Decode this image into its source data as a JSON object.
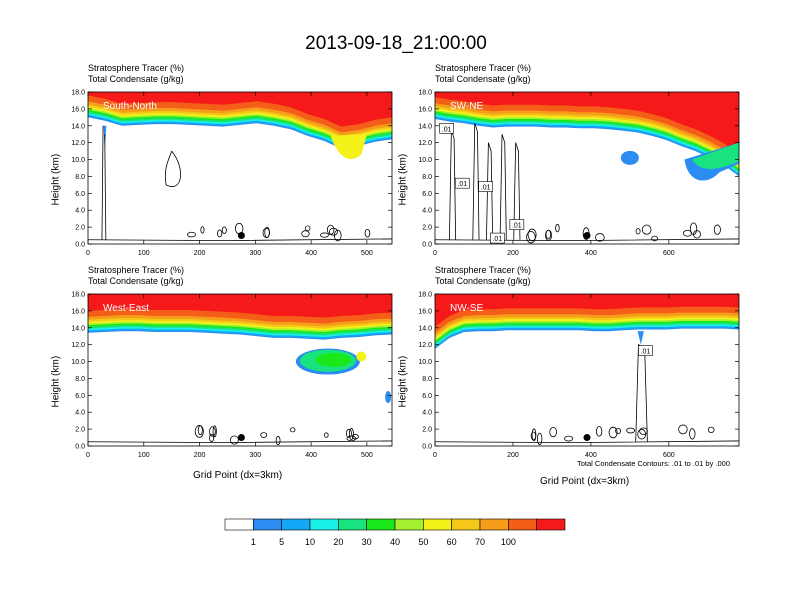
{
  "title": "2013-09-18_21:00:00",
  "colors": {
    "levels": [
      "#ffffff",
      "#2b8cf2",
      "#13a8f5",
      "#19f0e6",
      "#19e37f",
      "#19e81a",
      "#a6f032",
      "#f5f219",
      "#f5c719",
      "#f59e19",
      "#f55e19",
      "#f51919"
    ],
    "contour": "#000000"
  },
  "chart_data": [
    {
      "type": "contour",
      "panel_label": "South-North",
      "title_line1": "Stratosphere Tracer   (%)",
      "title_line2": "Total Condensate   (g/kg)",
      "xlabel": "",
      "ylabel": "Height (km)",
      "xlim": [
        0,
        545
      ],
      "ylim": [
        0,
        18
      ],
      "xticks": [
        "0",
        "100",
        "200",
        "300",
        "400",
        "500"
      ],
      "yticks": [
        "0.0",
        "2.0",
        "4.0",
        "6.0",
        "8.0",
        "10.0",
        "12.0",
        "14.0",
        "16.0",
        "18.0"
      ],
      "tracer_base_km": [
        15.0,
        14.6,
        14.0,
        14.1,
        14.2,
        14.2,
        14.1,
        14.0,
        13.9,
        14.1,
        14.3,
        14.0,
        13.6,
        12.8,
        12.2,
        11.3,
        11.6,
        12.1,
        12.4
      ],
      "marker": {
        "x": 275,
        "y": 1.0
      },
      "contour_labels": [],
      "bottom_note": ""
    },
    {
      "type": "contour",
      "panel_label": "SW-NE",
      "title_line1": "Stratosphere Tracer   (%)",
      "title_line2": "Total Condensate   (g/kg)",
      "xlabel": "",
      "ylabel": "Height (km)",
      "xlim": [
        0,
        780
      ],
      "ylim": [
        0,
        18
      ],
      "xticks": [
        "0",
        "200",
        "400",
        "600"
      ],
      "yticks": [
        "0.0",
        "2.0",
        "4.0",
        "6.0",
        "8.0",
        "10.0",
        "12.0",
        "14.0",
        "16.0",
        "18.0"
      ],
      "tracer_base_km": [
        14.8,
        14.5,
        14.3,
        14.0,
        13.8,
        13.9,
        13.9,
        13.9,
        13.8,
        13.8,
        13.7,
        13.7,
        13.6,
        13.4,
        13.2,
        12.8,
        12.3,
        11.6,
        11.0,
        10.2,
        9.3,
        8.0
      ],
      "marker": {
        "x": 390,
        "y": 1.0
      },
      "contour_labels": [
        ".01",
        ".01",
        ".01",
        ".01",
        ".01"
      ],
      "bottom_note": ""
    },
    {
      "type": "contour",
      "panel_label": "West-East",
      "title_line1": "Stratosphere Tracer   (%)",
      "title_line2": "Total Condensate   (g/kg)",
      "xlabel": "Grid Point (dx=3km)",
      "ylabel": "Height (km)",
      "xlim": [
        0,
        545
      ],
      "ylim": [
        0,
        18
      ],
      "xticks": [
        "0",
        "100",
        "200",
        "300",
        "400",
        "500"
      ],
      "yticks": [
        "0.0",
        "2.0",
        "4.0",
        "6.0",
        "8.0",
        "10.0",
        "12.0",
        "14.0",
        "16.0",
        "18.0"
      ],
      "tracer_base_km": [
        13.4,
        13.5,
        13.6,
        13.6,
        13.5,
        13.5,
        13.5,
        13.4,
        13.3,
        13.2,
        13.0,
        12.8,
        12.8,
        12.7,
        12.6,
        12.8,
        12.9,
        13.1,
        13.2
      ],
      "marker": {
        "x": 275,
        "y": 1.0
      },
      "contour_labels": [],
      "bottom_note": ""
    },
    {
      "type": "contour",
      "panel_label": "NW-SE",
      "title_line1": "Stratosphere Tracer   (%)",
      "title_line2": "Total Condensate   (g/kg)",
      "xlabel": "Grid Point (dx=3km)",
      "ylabel": "Height (km)",
      "xlim": [
        0,
        780
      ],
      "ylim": [
        0,
        18
      ],
      "xticks": [
        "0",
        "200",
        "400",
        "600"
      ],
      "yticks": [
        "0.0",
        "2.0",
        "4.0",
        "6.0",
        "8.0",
        "10.0",
        "12.0",
        "14.0",
        "16.0",
        "18.0"
      ],
      "tracer_base_km": [
        11.5,
        12.8,
        13.5,
        13.6,
        13.6,
        13.7,
        13.7,
        13.7,
        13.7,
        13.7,
        13.7,
        13.6,
        13.6,
        13.7,
        13.8,
        13.8,
        13.8,
        13.9,
        13.9,
        13.9,
        13.9,
        13.8
      ],
      "marker": {
        "x": 390,
        "y": 1.0
      },
      "contour_labels": [
        ".01"
      ],
      "bottom_note": "Total Condensate Contours: .01 to .01 by .000"
    }
  ],
  "colorbar": {
    "labels": [
      "1",
      "5",
      "10",
      "20",
      "30",
      "40",
      "50",
      "60",
      "70",
      "100"
    ]
  }
}
